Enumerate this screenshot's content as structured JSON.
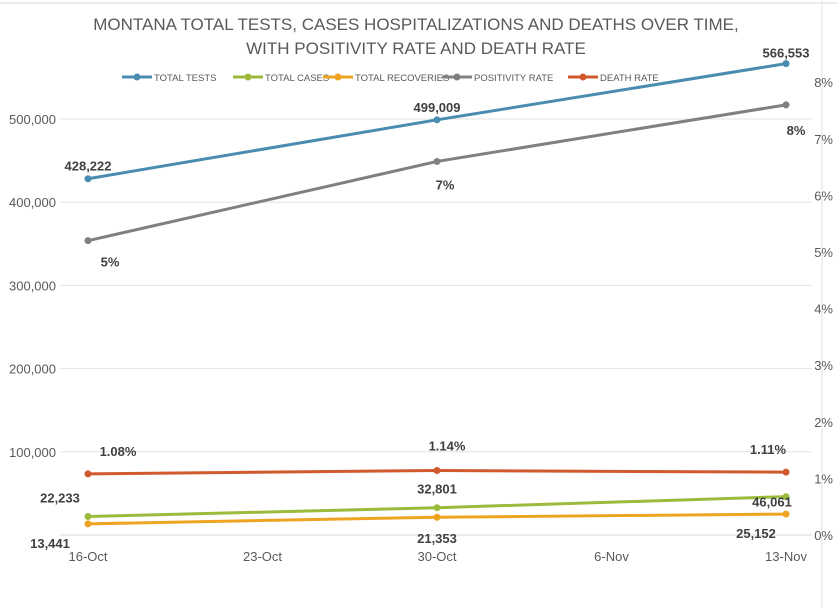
{
  "chart_data": {
    "type": "line",
    "title": "MONTANA TOTAL TESTS, CASES HOSPITALIZATIONS AND DEATHS OVER TIME,",
    "subtitle": "WITH POSITIVITY RATE AND DEATH RATE",
    "categories": [
      "16-Oct",
      "23-Oct",
      "30-Oct",
      "6-Nov",
      "13-Nov"
    ],
    "y_left": {
      "ticks": [
        "100,000",
        "200,000",
        "300,000",
        "400,000",
        "500,000"
      ],
      "tick_values": [
        100000,
        200000,
        300000,
        400000,
        500000
      ],
      "ylim": [
        0,
        600000
      ]
    },
    "y_right": {
      "ticks": [
        "0%",
        "1%",
        "2%",
        "3%",
        "4%",
        "5%",
        "6%",
        "7%",
        "8%"
      ],
      "tick_values": [
        0,
        1,
        2,
        3,
        4,
        5,
        6,
        7,
        8
      ],
      "ylim": [
        0,
        9
      ]
    },
    "grid": true,
    "legend_position": "top",
    "series": [
      {
        "name": "TOTAL TESTS",
        "axis": "left",
        "color": "#4a8cb0",
        "x": [
          "16-Oct",
          "30-Oct",
          "13-Nov"
        ],
        "values": [
          428222,
          499009,
          566553
        ],
        "labels": [
          "428,222",
          "499,009",
          "566,553"
        ]
      },
      {
        "name": "TOTAL CASES",
        "axis": "left",
        "color": "#9cbb3c",
        "x": [
          "16-Oct",
          "30-Oct",
          "13-Nov"
        ],
        "values": [
          22233,
          32801,
          46061
        ],
        "labels": [
          "22,233",
          "32,801",
          "46,061"
        ]
      },
      {
        "name": "TOTAL RECOVERIES",
        "axis": "left",
        "color": "#eea321",
        "x": [
          "16-Oct",
          "30-Oct",
          "13-Nov"
        ],
        "values": [
          13441,
          21353,
          25152
        ],
        "labels": [
          "13,441",
          "21,353",
          "25,152"
        ]
      },
      {
        "name": "POSITIVITY RATE",
        "axis": "right",
        "color": "#808080",
        "x": [
          "16-Oct",
          "30-Oct",
          "13-Nov"
        ],
        "values": [
          5.2,
          6.6,
          7.6
        ],
        "labels": [
          "5%",
          "7%",
          "8%"
        ]
      },
      {
        "name": "DEATH RATE",
        "axis": "right",
        "color": "#d1592e",
        "x": [
          "16-Oct",
          "30-Oct",
          "13-Nov"
        ],
        "values": [
          1.08,
          1.14,
          1.11
        ],
        "labels": [
          "1.08%",
          "1.14%",
          "1.11%"
        ]
      }
    ]
  }
}
